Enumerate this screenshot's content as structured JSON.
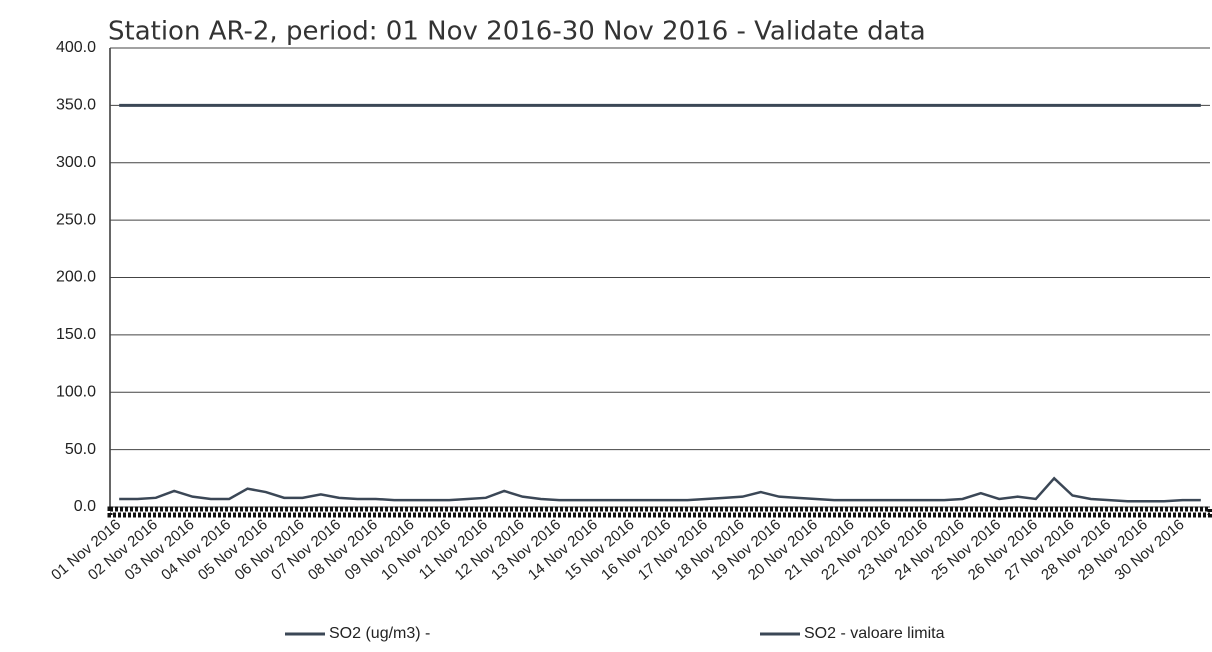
{
  "chart_data": {
    "type": "line",
    "title": "Station AR-2, period: 01 Nov 2016-30 Nov 2016 - Validate data",
    "categories": [
      "01 Nov 2016",
      null,
      "02 Nov 2016",
      null,
      "03 Nov 2016",
      null,
      "04 Nov 2016",
      null,
      "05 Nov 2016",
      null,
      "06 Nov 2016",
      null,
      "07 Nov 2016",
      null,
      "08 Nov 2016",
      null,
      "09 Nov 2016",
      null,
      "10 Nov 2016",
      null,
      "11 Nov 2016",
      null,
      "12 Nov 2016",
      null,
      "13 Nov 2016",
      null,
      "14 Nov 2016",
      null,
      "15 Nov 2016",
      null,
      "16 Nov 2016",
      null,
      "17 Nov 2016",
      null,
      "18 Nov 2016",
      null,
      "19 Nov 2016",
      null,
      "20 Nov 2016",
      null,
      "21 Nov 2016",
      null,
      "22 Nov 2016",
      null,
      "23 Nov 2016",
      null,
      "24 Nov 2016",
      null,
      "25 Nov 2016",
      null,
      "26 Nov 2016",
      null,
      "27 Nov 2016",
      null,
      "28 Nov 2016",
      null,
      "29 Nov 2016",
      null,
      "30 Nov 2016",
      null
    ],
    "series": [
      {
        "name": "SO2 (ug/m3)  -",
        "color": "#3b4756",
        "values": [
          7,
          7,
          8,
          14,
          9,
          7,
          7,
          16,
          13,
          8,
          8,
          11,
          8,
          7,
          7,
          6,
          6,
          6,
          6,
          7,
          8,
          14,
          9,
          7,
          6,
          6,
          6,
          6,
          6,
          6,
          6,
          6,
          7,
          8,
          9,
          13,
          9,
          8,
          7,
          6,
          6,
          6,
          6,
          6,
          6,
          6,
          7,
          12,
          7,
          9,
          7,
          25,
          10,
          7,
          6,
          5,
          5,
          5,
          6,
          6
        ]
      },
      {
        "name": "SO2 - valoare limita",
        "color": "#3b4756",
        "values": [
          350,
          350,
          350,
          350,
          350,
          350,
          350,
          350,
          350,
          350,
          350,
          350,
          350,
          350,
          350,
          350,
          350,
          350,
          350,
          350,
          350,
          350,
          350,
          350,
          350,
          350,
          350,
          350,
          350,
          350,
          350,
          350,
          350,
          350,
          350,
          350,
          350,
          350,
          350,
          350,
          350,
          350,
          350,
          350,
          350,
          350,
          350,
          350,
          350,
          350,
          350,
          350,
          350,
          350,
          350,
          350,
          350,
          350,
          350,
          350
        ]
      }
    ],
    "ylim": [
      0,
      400
    ],
    "yticks": [
      {
        "value": 0,
        "label": "0.0"
      },
      {
        "value": 50,
        "label": "50.0"
      },
      {
        "value": 100,
        "label": "100.0"
      },
      {
        "value": 150,
        "label": "150.0"
      },
      {
        "value": 200,
        "label": "200.0"
      },
      {
        "value": 250,
        "label": "250.0"
      },
      {
        "value": 300,
        "label": "300.0"
      },
      {
        "value": 350,
        "label": "350.0"
      },
      {
        "value": 400,
        "label": "400.0"
      }
    ],
    "grid": true
  }
}
